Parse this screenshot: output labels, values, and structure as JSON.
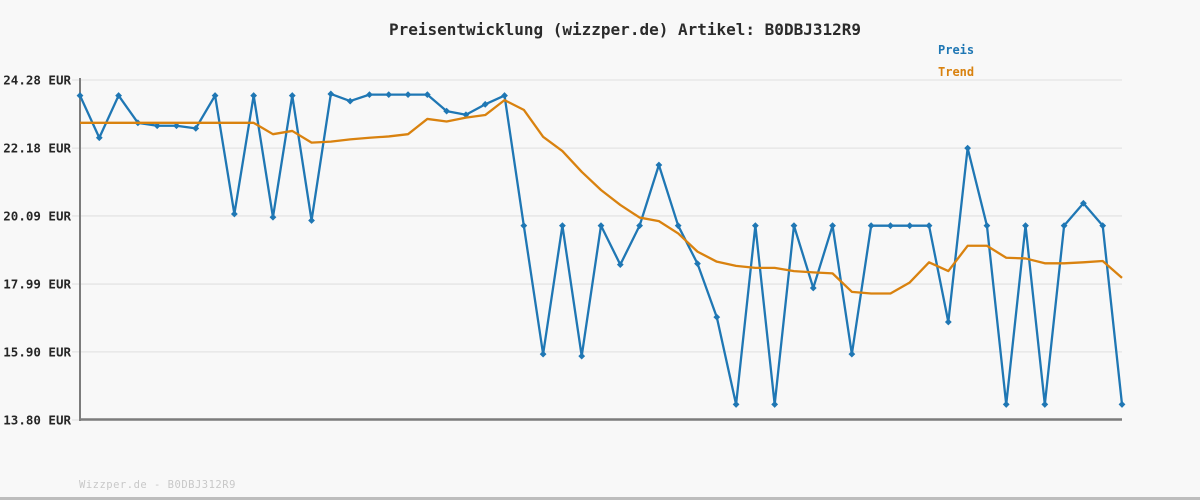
{
  "title": "Preisentwicklung (wizzper.de) Artikel: B0DBJ312R9",
  "legend": {
    "price_label": "Preis",
    "trend_label": "Trend"
  },
  "footer": "Wizzper.de - B0DBJ312R9",
  "colors": {
    "price": "#1f77b4",
    "trend": "#d9820f",
    "grid": "#e4e4e4",
    "axis": "#7c7c7c",
    "title_text": "#2b2b2b",
    "tick_text": "#262626",
    "footer_text": "#c8c8c8",
    "background": "#f8f8f8",
    "bottom_bar": "#bdbdbd"
  },
  "chart_data": {
    "type": "line",
    "title": "Preisentwicklung (wizzper.de) Artikel: B0DBJ312R9",
    "xlabel": "",
    "ylabel": "EUR",
    "ylim": [
      13.8,
      24.28
    ],
    "grid": true,
    "legend_position": "top-right",
    "y_ticks": [
      24.28,
      22.18,
      20.09,
      17.99,
      15.9,
      13.8
    ],
    "y_tick_labels": [
      "24.28 EUR",
      "22.18 EUR",
      "20.09 EUR",
      "17.99 EUR",
      "15.90 EUR",
      "13.80 EUR"
    ],
    "x_axis": {
      "tick_labels_visible": false,
      "n_points": 55
    },
    "series": [
      {
        "name": "Preis",
        "color": "#1f77b4",
        "marker": "diamond",
        "values": [
          23.8,
          22.5,
          23.8,
          22.96,
          22.87,
          22.87,
          22.79,
          23.8,
          20.15,
          23.8,
          20.05,
          23.8,
          19.95,
          23.85,
          23.63,
          23.83,
          23.83,
          23.83,
          23.83,
          23.32,
          23.21,
          23.53,
          23.8,
          19.79,
          15.83,
          19.79,
          15.77,
          19.79,
          18.59,
          19.79,
          21.66,
          19.79,
          18.62,
          16.97,
          14.28,
          19.79,
          14.28,
          19.79,
          17.87,
          19.79,
          15.83,
          19.79,
          19.79,
          19.79,
          19.79,
          16.82,
          22.18,
          19.79,
          14.28,
          19.79,
          14.28,
          19.79,
          20.48,
          19.79,
          14.28
        ]
      },
      {
        "name": "Trend",
        "color": "#d9820f",
        "marker": "none",
        "values": [
          22.96,
          22.96,
          22.96,
          22.96,
          22.96,
          22.96,
          22.96,
          22.96,
          22.96,
          22.96,
          22.61,
          22.71,
          22.35,
          22.38,
          22.45,
          22.5,
          22.54,
          22.61,
          23.08,
          23.0,
          23.12,
          23.2,
          23.66,
          23.36,
          22.53,
          22.09,
          21.45,
          20.89,
          20.43,
          20.04,
          19.93,
          19.55,
          18.99,
          18.68,
          18.55,
          18.49,
          18.49,
          18.39,
          18.35,
          18.32,
          17.75,
          17.7,
          17.7,
          18.04,
          18.66,
          18.39,
          19.17,
          19.17,
          18.8,
          18.78,
          18.63,
          18.63,
          18.66,
          18.7,
          18.18
        ]
      }
    ]
  }
}
